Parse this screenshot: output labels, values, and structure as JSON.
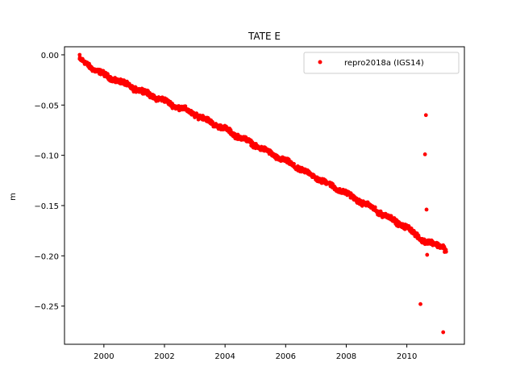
{
  "chart_data": {
    "type": "scatter",
    "title": "TATE E",
    "xlabel": "",
    "ylabel": "m",
    "xlim": [
      1998.7,
      2011.9
    ],
    "ylim": [
      -0.288,
      0.008
    ],
    "xticks": [
      2000,
      2002,
      2004,
      2006,
      2008,
      2010
    ],
    "xtick_labels": [
      "2000",
      "2002",
      "2004",
      "2006",
      "2008",
      "2010"
    ],
    "yticks": [
      0.0,
      -0.05,
      -0.1,
      -0.15,
      -0.2,
      -0.25
    ],
    "ytick_labels": [
      "0.00",
      "−0.05",
      "−0.10",
      "−0.15",
      "−0.20",
      "−0.25"
    ],
    "grid": false,
    "legend_position": "top-right",
    "series": [
      {
        "name": "repro2018a (IGS14)",
        "color": "#ff0000",
        "marker": "dot",
        "trend": {
          "x": [
            1999.2,
            2000.0,
            2001.0,
            2002.0,
            2003.0,
            2004.0,
            2005.0,
            2006.0,
            2007.0,
            2008.0,
            2009.0,
            2010.0,
            2010.6,
            2011.2,
            2011.3
          ],
          "y": [
            -0.005,
            -0.02,
            -0.033,
            -0.046,
            -0.059,
            -0.074,
            -0.09,
            -0.106,
            -0.122,
            -0.138,
            -0.155,
            -0.172,
            -0.186,
            -0.19,
            -0.196
          ]
        },
        "x": [
          1999.2,
          1999.3,
          1999.5,
          2010.45,
          2010.6,
          2010.63,
          2010.65,
          2010.67,
          2011.2
        ],
        "y": [
          0.0,
          -0.005,
          -0.01,
          -0.248,
          -0.099,
          -0.06,
          -0.154,
          -0.199,
          -0.276
        ]
      }
    ]
  }
}
